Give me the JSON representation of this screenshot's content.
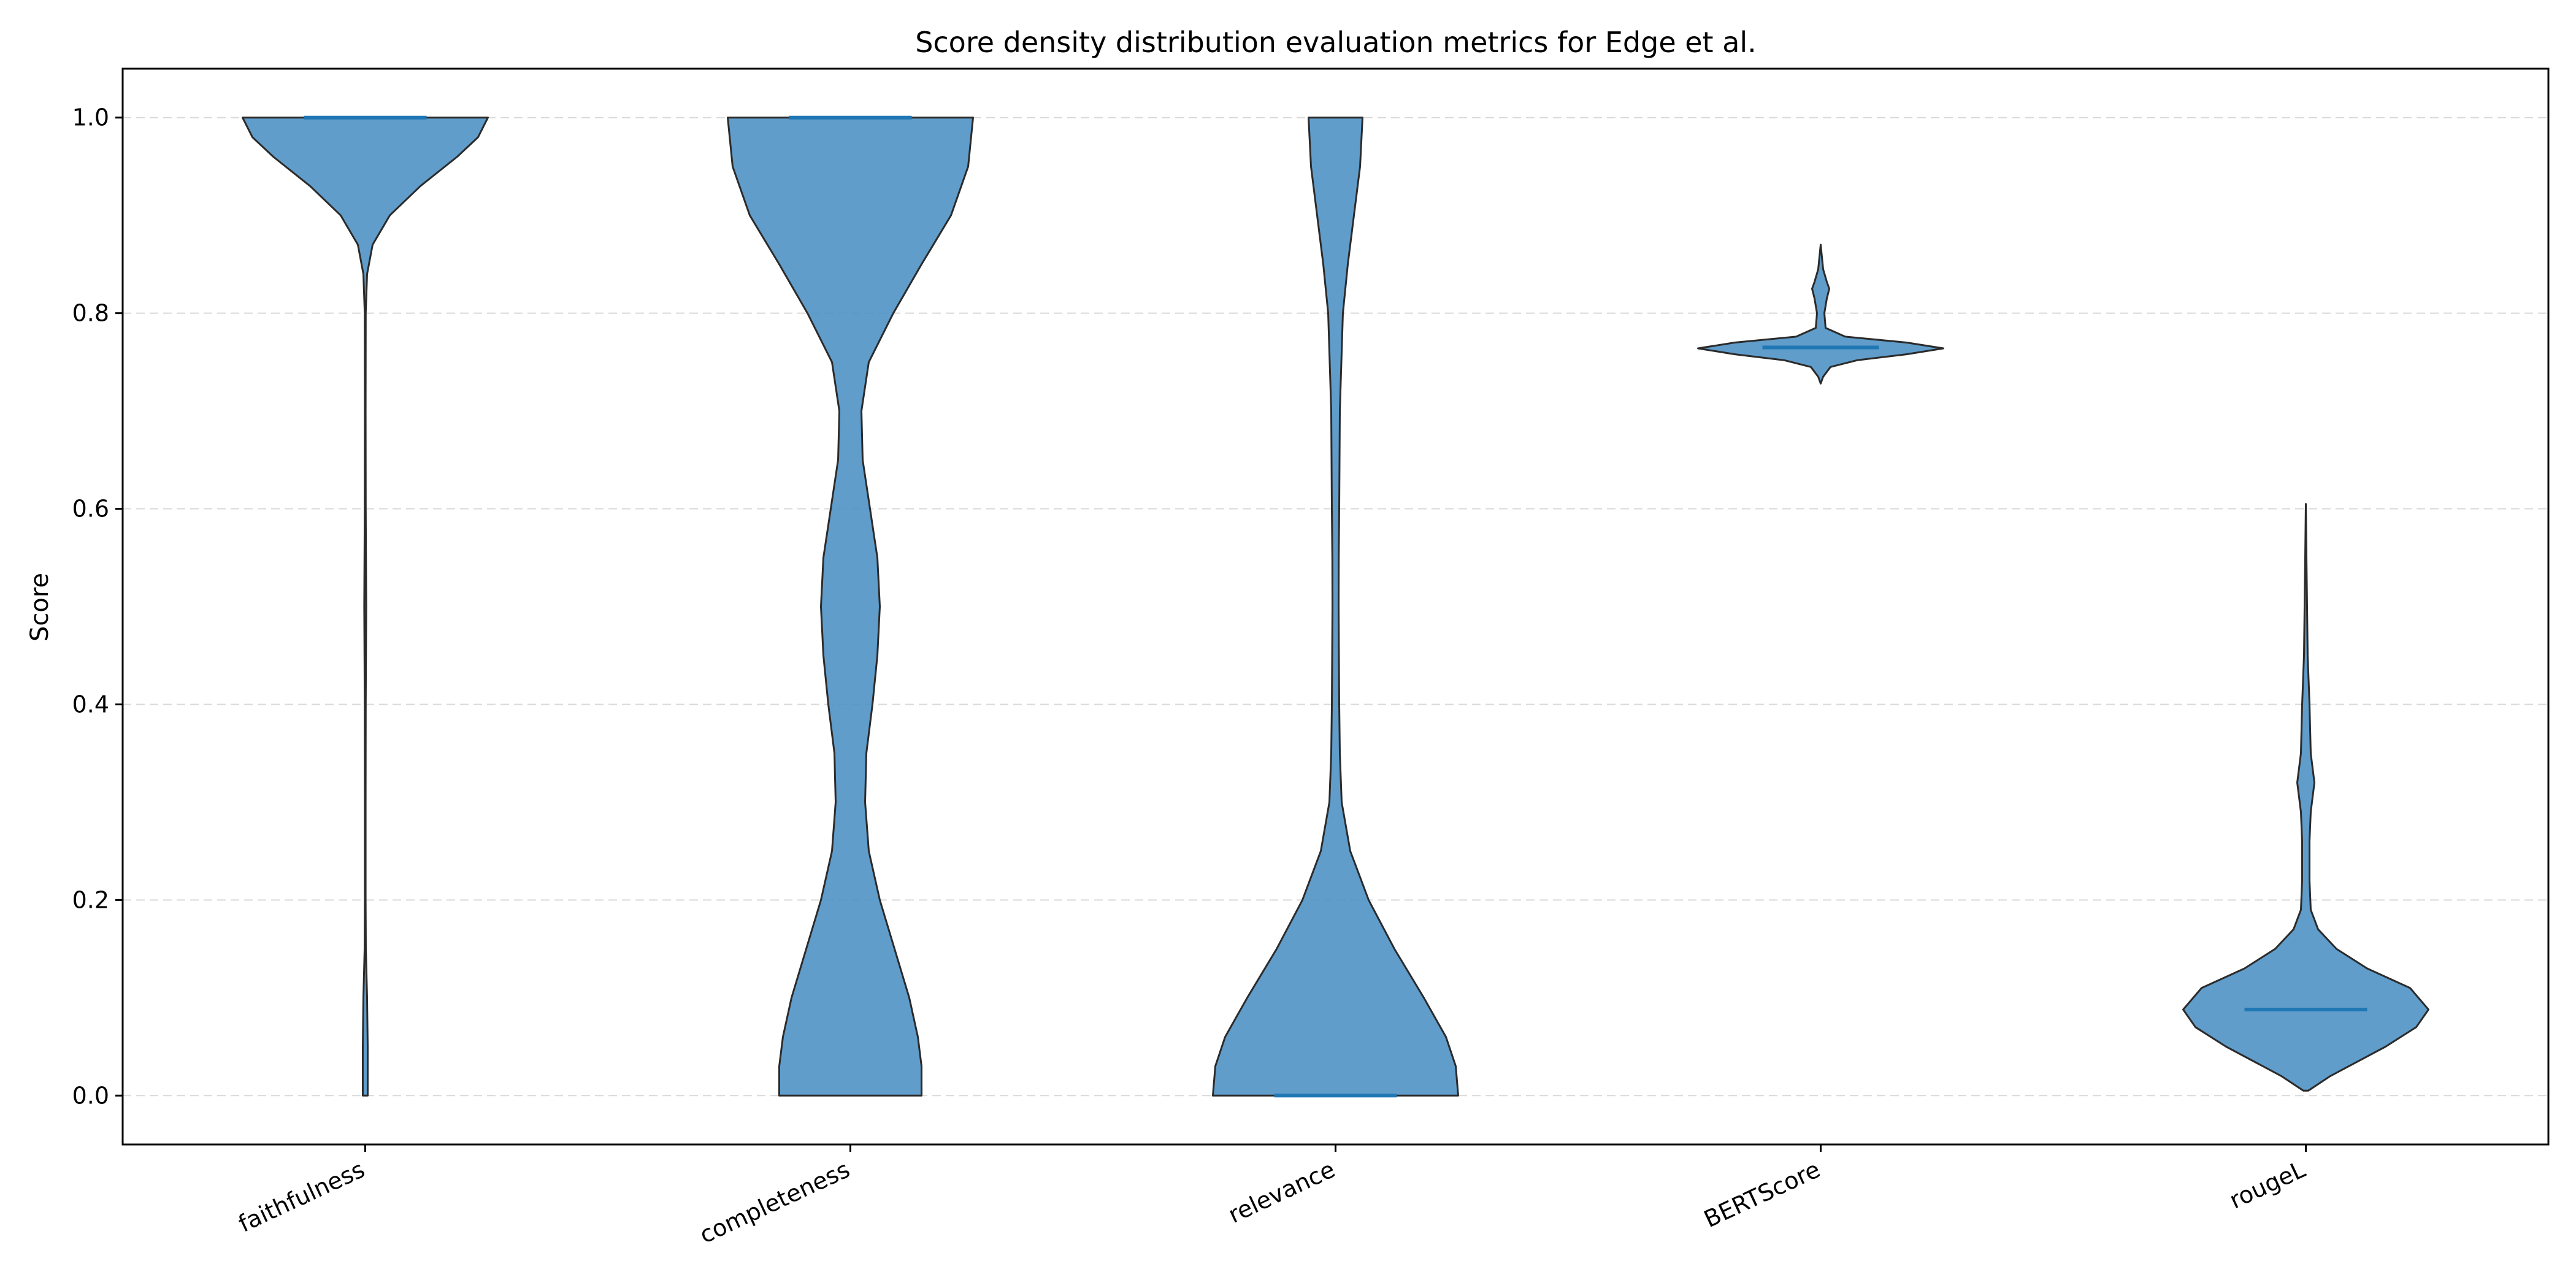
{
  "chart_data": {
    "type": "violin",
    "title": "Score density distribution evaluation metrics for Edge et al.",
    "xlabel": "",
    "ylabel": "Score",
    "ylim": [
      -0.05,
      1.05
    ],
    "yticks": [
      "0.0",
      "0.2",
      "0.4",
      "0.6",
      "0.8",
      "1.0"
    ],
    "grid": "horizontal dashed",
    "colors": {
      "fill": "#4a90c4",
      "edge": "#2b2b2b",
      "median": "#1f77b4",
      "grid": "#d9d9d9"
    },
    "categories": [
      "faithfulness",
      "completeness",
      "relevance",
      "BERTScore",
      "rougeL"
    ],
    "series": [
      {
        "category": "faithfulness",
        "min": 0.0,
        "max": 1.0,
        "median": 1.0,
        "density": [
          [
            0.0,
            0.02
          ],
          [
            0.05,
            0.02
          ],
          [
            0.1,
            0.015
          ],
          [
            0.15,
            0.005
          ],
          [
            0.2,
            0.003
          ],
          [
            0.3,
            0.003
          ],
          [
            0.4,
            0.004
          ],
          [
            0.45,
            0.006
          ],
          [
            0.5,
            0.008
          ],
          [
            0.55,
            0.006
          ],
          [
            0.6,
            0.004
          ],
          [
            0.7,
            0.003
          ],
          [
            0.8,
            0.004
          ],
          [
            0.84,
            0.015
          ],
          [
            0.87,
            0.06
          ],
          [
            0.9,
            0.2
          ],
          [
            0.93,
            0.45
          ],
          [
            0.96,
            0.75
          ],
          [
            0.98,
            0.92
          ],
          [
            1.0,
            1.0
          ]
        ]
      },
      {
        "category": "completeness",
        "min": 0.0,
        "max": 1.0,
        "median": 1.0,
        "density": [
          [
            0.0,
            0.58
          ],
          [
            0.03,
            0.58
          ],
          [
            0.06,
            0.55
          ],
          [
            0.1,
            0.48
          ],
          [
            0.15,
            0.36
          ],
          [
            0.2,
            0.24
          ],
          [
            0.25,
            0.15
          ],
          [
            0.3,
            0.12
          ],
          [
            0.35,
            0.13
          ],
          [
            0.4,
            0.18
          ],
          [
            0.45,
            0.22
          ],
          [
            0.5,
            0.24
          ],
          [
            0.55,
            0.22
          ],
          [
            0.6,
            0.16
          ],
          [
            0.65,
            0.1
          ],
          [
            0.7,
            0.09
          ],
          [
            0.75,
            0.15
          ],
          [
            0.8,
            0.35
          ],
          [
            0.85,
            0.58
          ],
          [
            0.9,
            0.82
          ],
          [
            0.95,
            0.96
          ],
          [
            1.0,
            1.0
          ]
        ]
      },
      {
        "category": "relevance",
        "min": 0.0,
        "max": 1.0,
        "median": 0.0,
        "density": [
          [
            0.0,
            1.0
          ],
          [
            0.03,
            0.98
          ],
          [
            0.06,
            0.9
          ],
          [
            0.1,
            0.72
          ],
          [
            0.15,
            0.48
          ],
          [
            0.2,
            0.27
          ],
          [
            0.25,
            0.12
          ],
          [
            0.3,
            0.05
          ],
          [
            0.35,
            0.035
          ],
          [
            0.4,
            0.03
          ],
          [
            0.5,
            0.025
          ],
          [
            0.55,
            0.026
          ],
          [
            0.6,
            0.03
          ],
          [
            0.7,
            0.035
          ],
          [
            0.8,
            0.06
          ],
          [
            0.85,
            0.1
          ],
          [
            0.9,
            0.15
          ],
          [
            0.95,
            0.2
          ],
          [
            1.0,
            0.22
          ]
        ]
      },
      {
        "category": "BERTScore",
        "min": 0.728,
        "max": 0.87,
        "median": 0.765,
        "density": [
          [
            0.728,
            0.0
          ],
          [
            0.735,
            0.02
          ],
          [
            0.745,
            0.08
          ],
          [
            0.752,
            0.3
          ],
          [
            0.758,
            0.7
          ],
          [
            0.764,
            1.0
          ],
          [
            0.77,
            0.7
          ],
          [
            0.776,
            0.2
          ],
          [
            0.785,
            0.04
          ],
          [
            0.8,
            0.03
          ],
          [
            0.815,
            0.05
          ],
          [
            0.825,
            0.07
          ],
          [
            0.832,
            0.05
          ],
          [
            0.845,
            0.02
          ],
          [
            0.87,
            0.0
          ]
        ]
      },
      {
        "category": "rougeL",
        "min": 0.005,
        "max": 0.605,
        "median": 0.088,
        "density": [
          [
            0.005,
            0.02
          ],
          [
            0.02,
            0.2
          ],
          [
            0.05,
            0.65
          ],
          [
            0.07,
            0.9
          ],
          [
            0.088,
            1.0
          ],
          [
            0.11,
            0.85
          ],
          [
            0.13,
            0.5
          ],
          [
            0.15,
            0.25
          ],
          [
            0.17,
            0.1
          ],
          [
            0.19,
            0.04
          ],
          [
            0.22,
            0.03
          ],
          [
            0.26,
            0.03
          ],
          [
            0.29,
            0.04
          ],
          [
            0.32,
            0.07
          ],
          [
            0.35,
            0.04
          ],
          [
            0.4,
            0.03
          ],
          [
            0.45,
            0.015
          ],
          [
            0.5,
            0.01
          ],
          [
            0.55,
            0.005
          ],
          [
            0.605,
            0.0
          ]
        ]
      }
    ]
  }
}
